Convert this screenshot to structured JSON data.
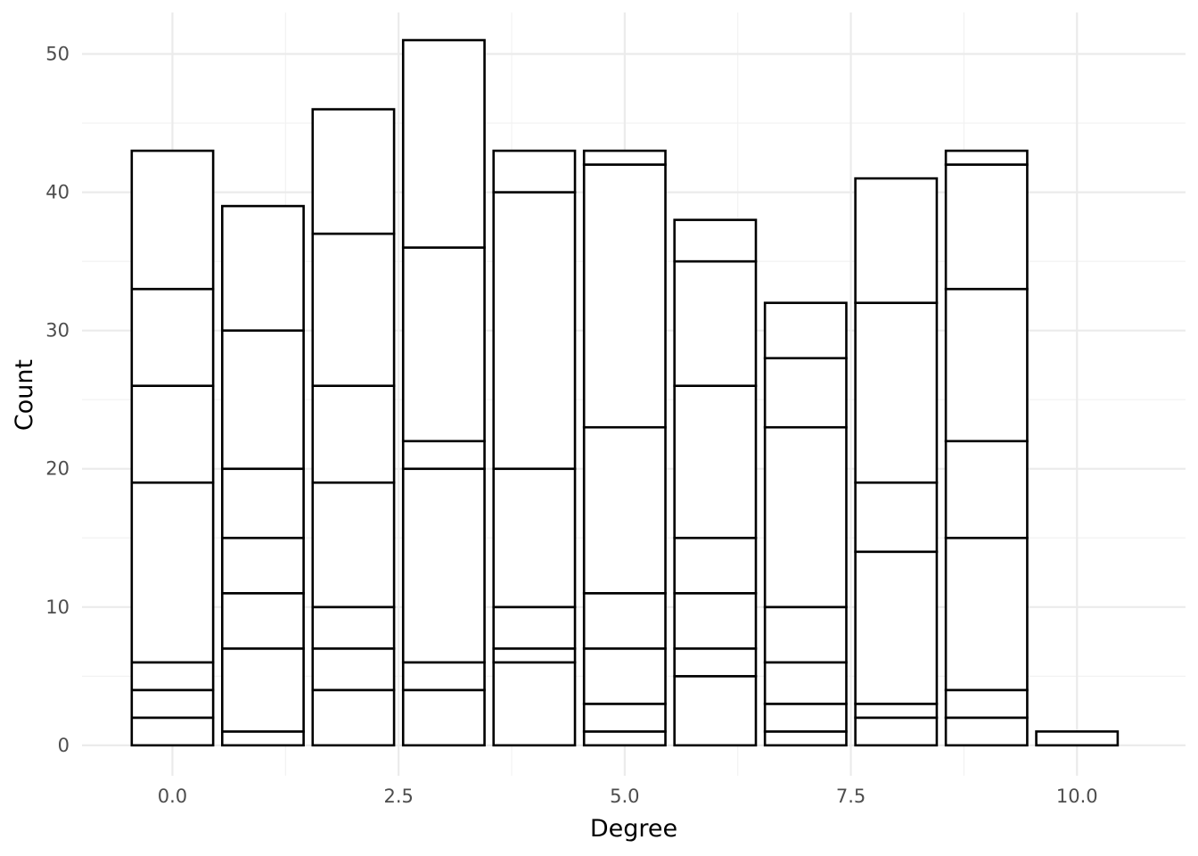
{
  "chart_data": {
    "type": "bar",
    "stacked": true,
    "xlabel": "Degree",
    "ylabel": "Count",
    "xlim": [
      -1,
      11.2
    ],
    "ylim": [
      -2.2,
      53
    ],
    "x_ticks": [
      {
        "value": 0,
        "label": "0.0"
      },
      {
        "value": 2.5,
        "label": "2.5"
      },
      {
        "value": 5,
        "label": "5.0"
      },
      {
        "value": 7.5,
        "label": "7.5"
      },
      {
        "value": 10,
        "label": "10.0"
      }
    ],
    "y_ticks": [
      {
        "value": 0,
        "label": "0"
      },
      {
        "value": 10,
        "label": "10"
      },
      {
        "value": 20,
        "label": "20"
      },
      {
        "value": 30,
        "label": "30"
      },
      {
        "value": 40,
        "label": "40"
      },
      {
        "value": 50,
        "label": "50"
      }
    ],
    "grid": true,
    "legend": "none",
    "bars": [
      {
        "x": 0,
        "total": 43,
        "boundaries": [
          2,
          4,
          6,
          19,
          26,
          33
        ]
      },
      {
        "x": 1,
        "total": 39,
        "boundaries": [
          1,
          7,
          11,
          15,
          20,
          30
        ]
      },
      {
        "x": 2,
        "total": 46,
        "boundaries": [
          4,
          7,
          10,
          19,
          26,
          37
        ]
      },
      {
        "x": 3,
        "total": 51,
        "boundaries": [
          4,
          6,
          20,
          22,
          36
        ]
      },
      {
        "x": 4,
        "total": 43,
        "boundaries": [
          6,
          7,
          10,
          20,
          40
        ]
      },
      {
        "x": 5,
        "total": 43,
        "boundaries": [
          1,
          3,
          7,
          11,
          23,
          42
        ]
      },
      {
        "x": 6,
        "total": 38,
        "boundaries": [
          5,
          7,
          11,
          15,
          26,
          35
        ]
      },
      {
        "x": 7,
        "total": 32,
        "boundaries": [
          1,
          3,
          6,
          10,
          23,
          28
        ]
      },
      {
        "x": 8,
        "total": 41,
        "boundaries": [
          2,
          3,
          14,
          19,
          32
        ]
      },
      {
        "x": 9,
        "total": 43,
        "boundaries": [
          2,
          4,
          15,
          22,
          33,
          42
        ]
      },
      {
        "x": 10,
        "total": 1,
        "boundaries": []
      }
    ]
  }
}
